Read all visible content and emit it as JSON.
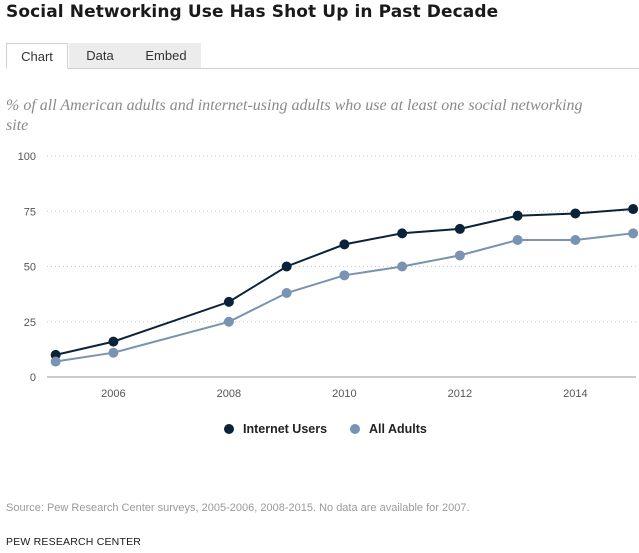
{
  "title": "Social Networking Use Has Shot Up in Past Decade",
  "tabs": [
    {
      "label": "Chart",
      "active": true
    },
    {
      "label": "Data",
      "active": false
    },
    {
      "label": "Embed",
      "active": false
    }
  ],
  "source": "Source: Pew Research Center surveys, 2005-2006, 2008-2015. No data are available for 2007.",
  "org": "PEW RESEARCH CENTER",
  "chart_data": {
    "type": "line",
    "title": "Social Networking Use Has Shot Up in Past Decade",
    "subtitle": "% of all American adults and internet-using adults who use at least one social networking site",
    "x": [
      2005,
      2006,
      2008,
      2009,
      2010,
      2011,
      2012,
      2013,
      2014,
      2015
    ],
    "xticks": [
      2006,
      2008,
      2010,
      2012,
      2014
    ],
    "yticks": [
      0,
      25,
      50,
      75,
      100
    ],
    "xlim": [
      2004.85,
      2015.05
    ],
    "ylim": [
      0,
      100
    ],
    "grid": true,
    "legend": "bottom-center",
    "series": [
      {
        "name": "Internet Users",
        "color": "#0b2339",
        "values": [
          10,
          16,
          34,
          50,
          60,
          65,
          67,
          73,
          74,
          76
        ]
      },
      {
        "name": "All Adults",
        "color": "#7a93b2",
        "values": [
          7,
          11,
          25,
          38,
          46,
          50,
          55,
          62,
          62,
          65
        ]
      }
    ]
  }
}
